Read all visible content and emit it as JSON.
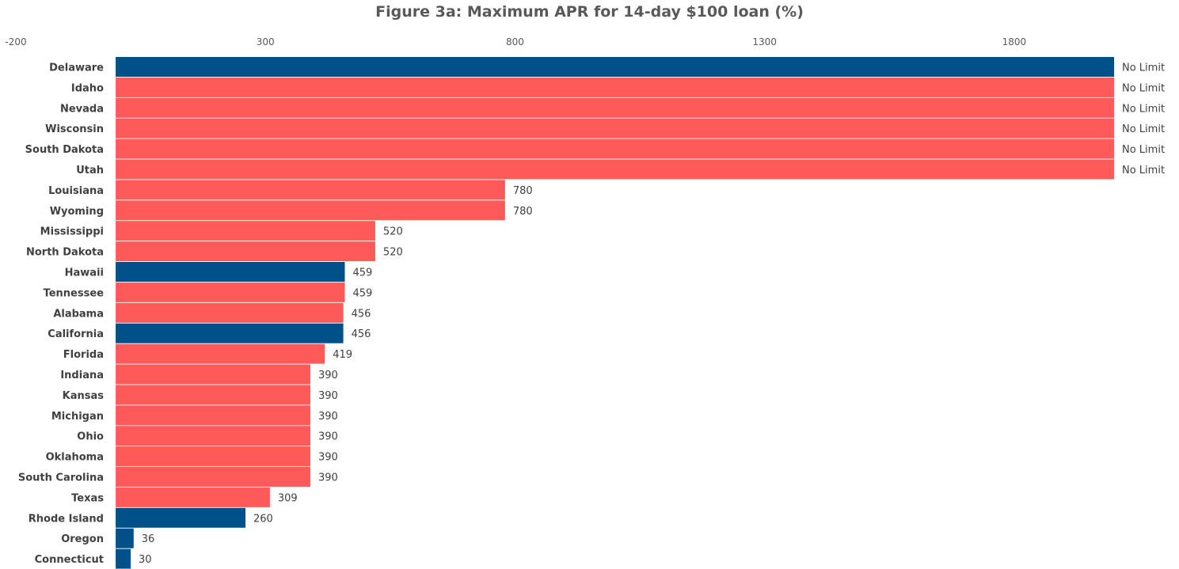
{
  "chart_data": {
    "type": "bar",
    "orientation": "horizontal",
    "title": "Figure 3a: Maximum APR for 14-day $100 loan (%)",
    "xlabel": "",
    "ylabel": "",
    "xlim": [
      -200,
      2000
    ],
    "x_ticks": [
      -200,
      300,
      800,
      1300,
      1800
    ],
    "x_tick_labels": [
      "-200",
      "300",
      "800",
      "1300",
      "1800"
    ],
    "axis_position": "top",
    "grid": false,
    "colors": {
      "blue": "#00508A",
      "red": "#FF5A5A"
    },
    "categories": [
      "Delaware",
      "Idaho",
      "Nevada",
      "Wisconsin",
      "South Dakota",
      "Utah",
      "Louisiana",
      "Wyoming",
      "Mississippi",
      "North Dakota",
      "Hawaii",
      "Tennessee",
      "Alabama",
      "California",
      "Florida",
      "Indiana",
      "Kansas",
      "Michigan",
      "Ohio",
      "Oklahoma",
      "South Carolina",
      "Texas",
      "Rhode Island",
      "Oregon",
      "Connecticut"
    ],
    "values": [
      2000,
      2000,
      2000,
      2000,
      2000,
      2000,
      780,
      780,
      520,
      520,
      459,
      459,
      456,
      456,
      419,
      390,
      390,
      390,
      390,
      390,
      390,
      309,
      260,
      36,
      30
    ],
    "labels": [
      "No Limit",
      "No Limit",
      "No Limit",
      "No Limit",
      "No Limit",
      "No Limit",
      "780",
      "780",
      "520",
      "520",
      "459",
      "459",
      "456",
      "456",
      "419",
      "390",
      "390",
      "390",
      "390",
      "390",
      "390",
      "309",
      "260",
      "36",
      "30"
    ],
    "bar_colors": [
      "blue",
      "red",
      "red",
      "red",
      "red",
      "red",
      "red",
      "red",
      "red",
      "red",
      "blue",
      "red",
      "red",
      "blue",
      "red",
      "red",
      "red",
      "red",
      "red",
      "red",
      "red",
      "red",
      "blue",
      "blue",
      "blue"
    ]
  }
}
